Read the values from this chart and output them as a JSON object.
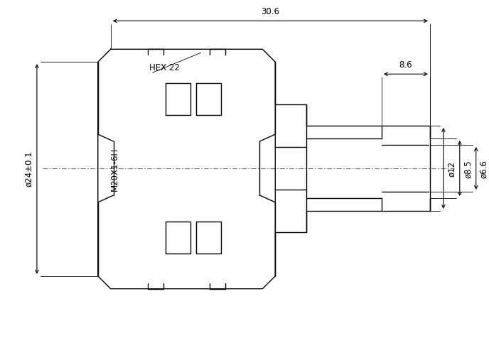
{
  "bg_color": "#ffffff",
  "line_color": "#000000",
  "dash_color": "#000000",
  "dim_color": "#000000",
  "figsize": [
    6.88,
    4.77
  ],
  "dpi": 100,
  "annotations": {
    "dim_30_6": "30.6",
    "dim_8_6": "8.6",
    "dim_hex": "HEX 22",
    "dim_m20": "M20X1-6H",
    "dim_phi24": "ø24±0.1",
    "dim_phi6_6": "ø6.6",
    "dim_phi8_5": "ø8.5",
    "dim_phi12": "ø12"
  }
}
